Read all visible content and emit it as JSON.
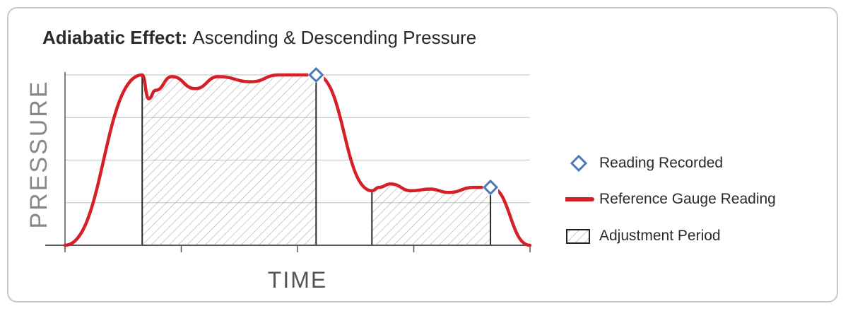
{
  "chart_data": {
    "type": "area",
    "title_bold": "Adiabatic Effect:",
    "title_rest": "Ascending & Descending Pressure",
    "xlabel": "TIME",
    "ylabel": "PRESSURE",
    "grid": true,
    "legend_position": "right",
    "legend": {
      "marker": "Reading Recorded",
      "line": "Reference Gauge Reading",
      "hatch": "Adjustment Period"
    },
    "colors": {
      "line": "#d62027",
      "marker": "#4a78b8",
      "grid": "#cccccc",
      "axis": "#555555",
      "hatch": "#9a9a9a",
      "text": "#2a2a2a",
      "ylabel": "#888888"
    },
    "series": [
      {
        "values": [
          [
            0,
            0
          ],
          [
            16.6,
            100
          ],
          [
            18.0,
            86
          ],
          [
            19.5,
            91
          ],
          [
            23.0,
            99
          ],
          [
            28.0,
            92
          ],
          [
            33.0,
            99
          ],
          [
            40.0,
            96
          ],
          [
            46.0,
            100
          ],
          [
            54.0,
            100
          ],
          [
            66.0,
            32
          ],
          [
            67.5,
            34
          ],
          [
            70.0,
            36
          ],
          [
            74.5,
            32
          ],
          [
            78.5,
            33
          ],
          [
            82.5,
            31
          ],
          [
            88.0,
            34
          ],
          [
            91.5,
            34
          ],
          [
            100,
            0
          ]
        ]
      }
    ],
    "markers": [
      [
        54.0,
        100
      ],
      [
        91.5,
        34
      ]
    ],
    "adjustment_periods": [
      [
        16.6,
        54.0
      ],
      [
        66.0,
        91.5
      ]
    ],
    "xlim": [
      0,
      100
    ],
    "ylim": [
      0,
      100
    ]
  }
}
